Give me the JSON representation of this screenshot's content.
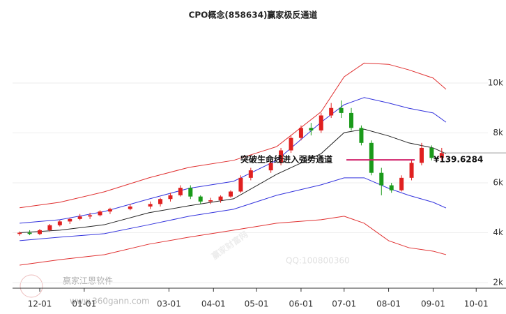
{
  "chart_data": {
    "type": "candlestick",
    "title": "CPO概念(858634)赢家极反通道",
    "x": [
      "11-17",
      "11-24",
      "12-01",
      "12-08",
      "12-15",
      "12-22",
      "12-29",
      "01-05",
      "01-12",
      "01-19",
      "02-02",
      "02-16",
      "02-23",
      "03-02",
      "03-09",
      "03-16",
      "03-23",
      "03-30",
      "04-06",
      "04-13",
      "04-20",
      "04-27",
      "05-11",
      "05-18",
      "05-25",
      "06-01",
      "06-08",
      "06-15",
      "06-22",
      "06-29",
      "07-06",
      "07-13",
      "07-20",
      "07-27",
      "08-03",
      "08-10",
      "08-17",
      "08-24",
      "08-31",
      "09-07"
    ],
    "open": [
      3950,
      4000,
      3950,
      4100,
      4300,
      4450,
      4550,
      4650,
      4700,
      4850,
      4950,
      5050,
      5150,
      5350,
      5500,
      5800,
      5450,
      5250,
      5300,
      5450,
      5650,
      6200,
      6500,
      6800,
      7300,
      7800,
      8200,
      8100,
      8700,
      9000,
      8800,
      8200,
      7600,
      6400,
      5900,
      5700,
      6200,
      6800,
      7400,
      7000
    ],
    "high": [
      4050,
      4100,
      4150,
      4350,
      4500,
      4600,
      4750,
      4800,
      4900,
      5000,
      5150,
      5250,
      5400,
      5600,
      5900,
      5900,
      5500,
      5400,
      5500,
      5700,
      6300,
      6600,
      6900,
      7400,
      7900,
      8300,
      8400,
      8800,
      9200,
      9300,
      9000,
      8300,
      7700,
      6600,
      6000,
      6300,
      6900,
      7600,
      7500,
      7400
    ],
    "low": [
      3880,
      3900,
      3900,
      4050,
      4250,
      4350,
      4500,
      4550,
      4650,
      4750,
      4900,
      4950,
      5050,
      5250,
      5450,
      5350,
      5150,
      5150,
      5200,
      5400,
      5600,
      6100,
      6400,
      6700,
      7200,
      7700,
      7900,
      8000,
      8600,
      8600,
      8100,
      7500,
      6300,
      5500,
      5600,
      5650,
      6100,
      6700,
      6900,
      6900
    ],
    "close": [
      4000,
      3950,
      4100,
      4300,
      4450,
      4550,
      4650,
      4700,
      4850,
      4950,
      5050,
      5150,
      5350,
      5500,
      5800,
      5450,
      5250,
      5300,
      5450,
      5650,
      6200,
      6500,
      6800,
      7300,
      7800,
      8200,
      8100,
      8700,
      9000,
      8800,
      8200,
      7600,
      6400,
      5900,
      5700,
      6200,
      6800,
      7400,
      7000,
      7200
    ],
    "up_color": "#e02020",
    "down_color": "#1a9a1a",
    "bands": {
      "x": [
        "11-17",
        "12-15",
        "01-15",
        "02-15",
        "03-15",
        "04-15",
        "05-15",
        "06-15",
        "07-01",
        "07-15",
        "08-01",
        "08-15",
        "09-01",
        "09-10"
      ],
      "series": [
        {
          "color": "#e03030",
          "values": [
            5000,
            5220,
            5640,
            6200,
            6620,
            6900,
            7450,
            8850,
            10250,
            10800,
            10750,
            10530,
            10200,
            9750
          ]
        },
        {
          "color": "#3333dd",
          "values": [
            4380,
            4520,
            4850,
            5350,
            5780,
            6060,
            6900,
            8430,
            9130,
            9420,
            9200,
            8990,
            8800,
            8430
          ]
        },
        {
          "color": "#222222",
          "values": [
            4000,
            4100,
            4320,
            4800,
            5080,
            5360,
            6340,
            7170,
            8010,
            8150,
            7880,
            7600,
            7400,
            7170
          ]
        },
        {
          "color": "#3333dd",
          "values": [
            3680,
            3820,
            3960,
            4320,
            4660,
            4940,
            5500,
            5920,
            6200,
            6200,
            5780,
            5500,
            5220,
            4990
          ]
        },
        {
          "color": "#e03030",
          "values": [
            2700,
            2920,
            3120,
            3540,
            3820,
            4100,
            4380,
            4520,
            4660,
            4380,
            3680,
            3400,
            3260,
            3120
          ]
        }
      ]
    },
    "ylim": [
      1720,
      12210
    ],
    "yticks": [
      {
        "value": 2000,
        "label": "2k"
      },
      {
        "value": 4000,
        "label": "4k"
      },
      {
        "value": 6000,
        "label": "6k"
      },
      {
        "value": 8000,
        "label": "8k"
      },
      {
        "value": 10000,
        "label": "10k"
      }
    ],
    "xticks": [
      "12-01",
      "01-01",
      "03-01",
      "04-01",
      "05-01",
      "06-01",
      "07-01",
      "08-01",
      "09-01",
      "10-01"
    ],
    "annotation": {
      "text": "突破生命线进入强势通道",
      "level": 6920,
      "price_label": "¥139.6284"
    },
    "watermarks": {
      "main": "赢家财富网",
      "qq": "QQ:100800360",
      "logo": "赢家江恩软件",
      "url": "www.360gann.com"
    }
  }
}
